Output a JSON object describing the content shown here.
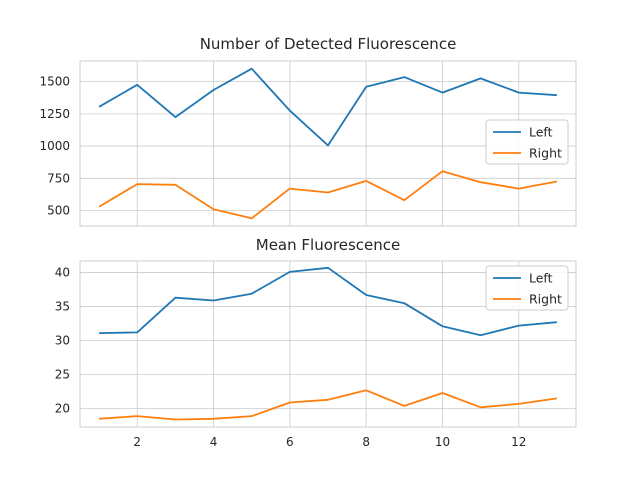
{
  "chart_data": [
    {
      "type": "line",
      "title": "Number of Detected Fluorescence",
      "xlim": [
        0.5,
        13.5
      ],
      "ylim": [
        380,
        1660
      ],
      "xticks": [
        2,
        4,
        6,
        8,
        10,
        12
      ],
      "xtick_labels_shown": false,
      "yticks": [
        500,
        750,
        1000,
        1250,
        1500
      ],
      "ytick_labels": [
        "500",
        "750",
        "1000",
        "1250",
        "1500"
      ],
      "grid": true,
      "legend_position": "center-right",
      "x": [
        1,
        2,
        3,
        4,
        5,
        6,
        7,
        8,
        9,
        10,
        11,
        12,
        13
      ],
      "series": [
        {
          "name": "Left",
          "color": "#1f77b4",
          "values": [
            1305,
            1475,
            1225,
            1435,
            1600,
            1275,
            1005,
            1460,
            1535,
            1415,
            1525,
            1415,
            1395
          ]
        },
        {
          "name": "Right",
          "color": "#ff7f0e",
          "values": [
            530,
            705,
            700,
            510,
            440,
            670,
            640,
            730,
            580,
            805,
            720,
            670,
            725
          ]
        }
      ]
    },
    {
      "type": "line",
      "title": "Mean Fluorescence",
      "xlim": [
        0.5,
        13.5
      ],
      "ylim": [
        17.3,
        41.7
      ],
      "xticks": [
        2,
        4,
        6,
        8,
        10,
        12
      ],
      "xtick_labels": [
        "2",
        "4",
        "6",
        "8",
        "10",
        "12"
      ],
      "yticks": [
        20,
        25,
        30,
        35,
        40
      ],
      "ytick_labels": [
        "20",
        "25",
        "30",
        "35",
        "40"
      ],
      "grid": true,
      "legend_position": "top-right",
      "x": [
        1,
        2,
        3,
        4,
        5,
        6,
        7,
        8,
        9,
        10,
        11,
        12,
        13
      ],
      "series": [
        {
          "name": "Left",
          "color": "#1f77b4",
          "values": [
            31.1,
            31.2,
            36.3,
            35.9,
            36.9,
            40.1,
            40.7,
            36.7,
            35.5,
            32.1,
            30.8,
            32.2,
            32.7
          ]
        },
        {
          "name": "Right",
          "color": "#ff7f0e",
          "values": [
            18.5,
            18.9,
            18.4,
            18.5,
            18.9,
            20.9,
            21.3,
            22.7,
            20.4,
            22.3,
            20.2,
            20.7,
            21.5
          ]
        }
      ]
    }
  ]
}
